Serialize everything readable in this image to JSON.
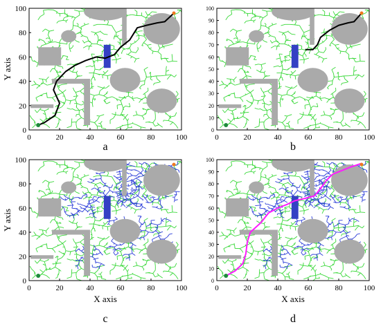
{
  "figure": {
    "panel_letters": [
      "a",
      "b",
      "c",
      "d"
    ],
    "xlabel": "X axis",
    "ylabel": "Y axis"
  },
  "colors": {
    "tree_green": "#39d839",
    "tree_blue": "#2a3cd8",
    "path_black": "#000000",
    "path_magenta": "#ff1aff",
    "obstacle_gray": "#aaaaaa",
    "obstacle_blue": "#3440c4",
    "start_green": "#1e8a3c",
    "goal_orange": "#f07820"
  },
  "chart_data": [
    {
      "type": "scatter",
      "panel": "a",
      "xlabel": "",
      "ylabel": "Y axis",
      "xlim": [
        0,
        100
      ],
      "ylim": [
        0,
        100
      ],
      "xticks": [
        0,
        20,
        40,
        60,
        80,
        100
      ],
      "yticks": [
        0,
        20,
        40,
        60,
        80,
        100
      ],
      "start": [
        6,
        4
      ],
      "goal": [
        95,
        96
      ],
      "path": [
        [
          6,
          4
        ],
        [
          10,
          6
        ],
        [
          17,
          12
        ],
        [
          20,
          22
        ],
        [
          16,
          33
        ],
        [
          18,
          40
        ],
        [
          24,
          48
        ],
        [
          30,
          53
        ],
        [
          37,
          57
        ],
        [
          44,
          60
        ],
        [
          50,
          59
        ],
        [
          56,
          62
        ],
        [
          60,
          68
        ],
        [
          66,
          74
        ],
        [
          71,
          84
        ],
        [
          77,
          86
        ],
        [
          84,
          88
        ],
        [
          89,
          89
        ],
        [
          95,
          96
        ]
      ]
    },
    {
      "type": "scatter",
      "panel": "b",
      "xlabel": "",
      "ylabel": "",
      "xlim": [
        0,
        100
      ],
      "ylim": [
        0,
        100
      ],
      "xticks": [
        0,
        20,
        40,
        60,
        80,
        100
      ],
      "yticks": [
        0,
        10,
        20,
        30,
        40,
        50,
        60,
        70,
        80,
        90,
        100
      ],
      "start": [
        6,
        4
      ],
      "goal": [
        95,
        96
      ],
      "path": [
        [
          58,
          66
        ],
        [
          63,
          66
        ],
        [
          66,
          70
        ],
        [
          68,
          76
        ],
        [
          74,
          82
        ],
        [
          80,
          86
        ],
        [
          86,
          88
        ],
        [
          90,
          89
        ],
        [
          95,
          96
        ]
      ]
    },
    {
      "type": "scatter",
      "panel": "c",
      "xlabel": "X axis",
      "ylabel": "Y axis",
      "xlim": [
        0,
        100
      ],
      "ylim": [
        0,
        100
      ],
      "xticks": [
        0,
        20,
        40,
        60,
        80,
        100
      ],
      "yticks": [
        0,
        20,
        40,
        60,
        80,
        100
      ],
      "start": [
        6,
        4
      ],
      "goal": [
        95,
        96
      ]
    },
    {
      "type": "scatter",
      "panel": "d",
      "xlabel": "X axis",
      "ylabel": "",
      "xlim": [
        0,
        100
      ],
      "ylim": [
        0,
        100
      ],
      "xticks": [
        0,
        20,
        40,
        60,
        80,
        100
      ],
      "yticks": [
        0,
        10,
        20,
        30,
        40,
        50,
        60,
        70,
        80,
        90,
        100
      ],
      "start": [
        6,
        4
      ],
      "goal": [
        95,
        96
      ],
      "path": [
        [
          6,
          4
        ],
        [
          12,
          8
        ],
        [
          17,
          14
        ],
        [
          19,
          22
        ],
        [
          20,
          32
        ],
        [
          22,
          40
        ],
        [
          29,
          48
        ],
        [
          34,
          56
        ],
        [
          40,
          60
        ],
        [
          46,
          63
        ],
        [
          51,
          66
        ],
        [
          58,
          68
        ],
        [
          64,
          70
        ],
        [
          68,
          76
        ],
        [
          72,
          83
        ],
        [
          76,
          88
        ],
        [
          82,
          91
        ],
        [
          88,
          94
        ],
        [
          95,
          97
        ]
      ]
    }
  ],
  "obstacles": [
    {
      "shape": "ellipse",
      "cx": 50,
      "cy": 97,
      "rx": 14,
      "ry": 7,
      "color": "gray"
    },
    {
      "shape": "rect",
      "x": 61,
      "y": 70,
      "w": 3,
      "h": 30,
      "color": "gray"
    },
    {
      "shape": "ellipse",
      "cx": 87,
      "cy": 83,
      "rx": 12,
      "ry": 13,
      "color": "gray"
    },
    {
      "shape": "ellipse",
      "cx": 26,
      "cy": 77,
      "rx": 5,
      "ry": 5,
      "color": "gray"
    },
    {
      "shape": "rect",
      "x": 6,
      "y": 53,
      "w": 15,
      "h": 15,
      "color": "gray"
    },
    {
      "shape": "rect",
      "x": 49,
      "y": 51,
      "w": 4.5,
      "h": 19,
      "color": "blue"
    },
    {
      "shape": "ellipse",
      "cx": 63,
      "cy": 41,
      "rx": 10,
      "ry": 10,
      "color": "gray"
    },
    {
      "shape": "rect",
      "x": 15,
      "y": 38,
      "w": 25,
      "h": 4,
      "color": "gray"
    },
    {
      "shape": "rect",
      "x": 36,
      "y": 4,
      "w": 4,
      "h": 38,
      "color": "gray"
    },
    {
      "shape": "ellipse",
      "cx": 87,
      "cy": 24,
      "rx": 10,
      "ry": 10,
      "color": "gray"
    },
    {
      "shape": "rect",
      "x": 1,
      "y": 18,
      "w": 15,
      "h": 3,
      "color": "gray"
    }
  ]
}
